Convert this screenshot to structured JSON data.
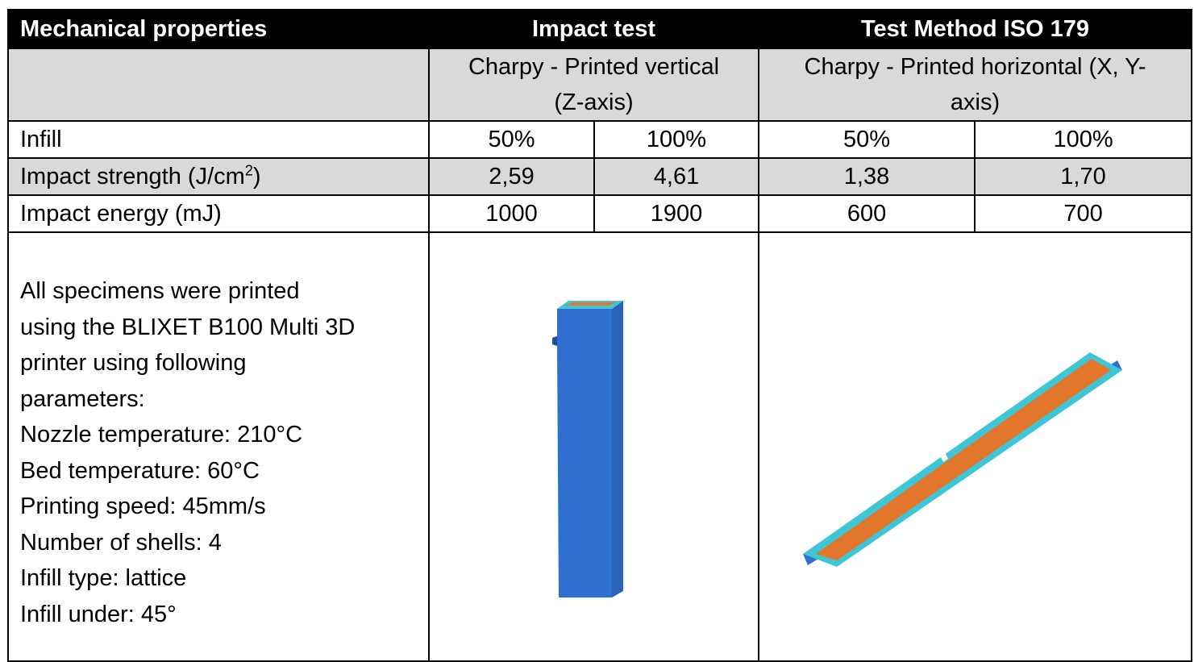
{
  "header": {
    "col1": "Mechanical properties",
    "col2": "Impact test",
    "col3": "Test Method ISO 179"
  },
  "subheader": {
    "vertical_line1": "Charpy - Printed vertical",
    "vertical_line2": "(Z-axis)",
    "horizontal_line1": "Charpy - Printed horizontal (X, Y-",
    "horizontal_line2": "axis)"
  },
  "rows": [
    {
      "label": "Infill",
      "values": [
        "50%",
        "100%",
        "50%",
        "100%"
      ]
    },
    {
      "label_main": "Impact strength (J/cm",
      "label_sup": "2",
      "label_end": ")",
      "values": [
        "2,59",
        "4,61",
        "1,38",
        "1,70"
      ]
    },
    {
      "label": "Impact energy (mJ)",
      "values": [
        "1000",
        "1900",
        "600",
        "700"
      ]
    }
  ],
  "description": [
    "All specimens were printed",
    "using the BLIXET B100 Multi 3D",
    "printer using following",
    "parameters:",
    "Nozzle temperature: 210°C",
    "Bed temperature: 60°C",
    "Printing speed: 45mm/s",
    "Number of shells: 4",
    "Infill type: lattice",
    "Infill under: 45°"
  ],
  "colors": {
    "header_bg": "#000000",
    "shade_bg": "#d9d9d9",
    "specimen_blue": "#2e6fcf",
    "specimen_cyan": "#3ec6d6",
    "infill_orange": "#e2762a"
  },
  "images": {
    "vertical_specimen": "vertical-specimen-render",
    "horizontal_specimen": "horizontal-specimen-render"
  }
}
